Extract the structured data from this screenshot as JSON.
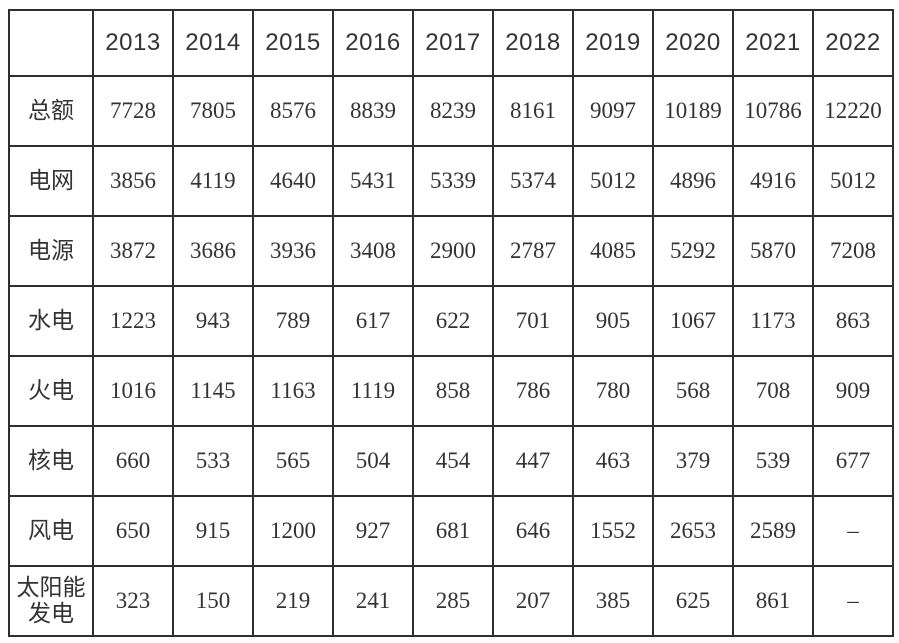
{
  "chart_data": {
    "type": "table",
    "title": "",
    "column_headers": [
      "",
      "2013",
      "2014",
      "2015",
      "2016",
      "2017",
      "2018",
      "2019",
      "2020",
      "2021",
      "2022"
    ],
    "rows": [
      {
        "label": "总额",
        "values": [
          "7728",
          "7805",
          "8576",
          "8839",
          "8239",
          "8161",
          "9097",
          "10189",
          "10786",
          "12220"
        ]
      },
      {
        "label": "电网",
        "values": [
          "3856",
          "4119",
          "4640",
          "5431",
          "5339",
          "5374",
          "5012",
          "4896",
          "4916",
          "5012"
        ]
      },
      {
        "label": "电源",
        "values": [
          "3872",
          "3686",
          "3936",
          "3408",
          "2900",
          "2787",
          "4085",
          "5292",
          "5870",
          "7208"
        ]
      },
      {
        "label": "水电",
        "values": [
          "1223",
          "943",
          "789",
          "617",
          "622",
          "701",
          "905",
          "1067",
          "1173",
          "863"
        ]
      },
      {
        "label": "火电",
        "values": [
          "1016",
          "1145",
          "1163",
          "1119",
          "858",
          "786",
          "780",
          "568",
          "708",
          "909"
        ]
      },
      {
        "label": "核电",
        "values": [
          "660",
          "533",
          "565",
          "504",
          "454",
          "447",
          "463",
          "379",
          "539",
          "677"
        ]
      },
      {
        "label": "风电",
        "values": [
          "650",
          "915",
          "1200",
          "927",
          "681",
          "646",
          "1552",
          "2653",
          "2589",
          "–"
        ]
      },
      {
        "label": "太阳能发电",
        "values": [
          "323",
          "150",
          "219",
          "241",
          "285",
          "207",
          "385",
          "625",
          "861",
          "–"
        ]
      }
    ],
    "layout": {
      "grid": "full-borders",
      "border_color": "#2f2f2f",
      "missing_value_symbol": "–"
    }
  }
}
